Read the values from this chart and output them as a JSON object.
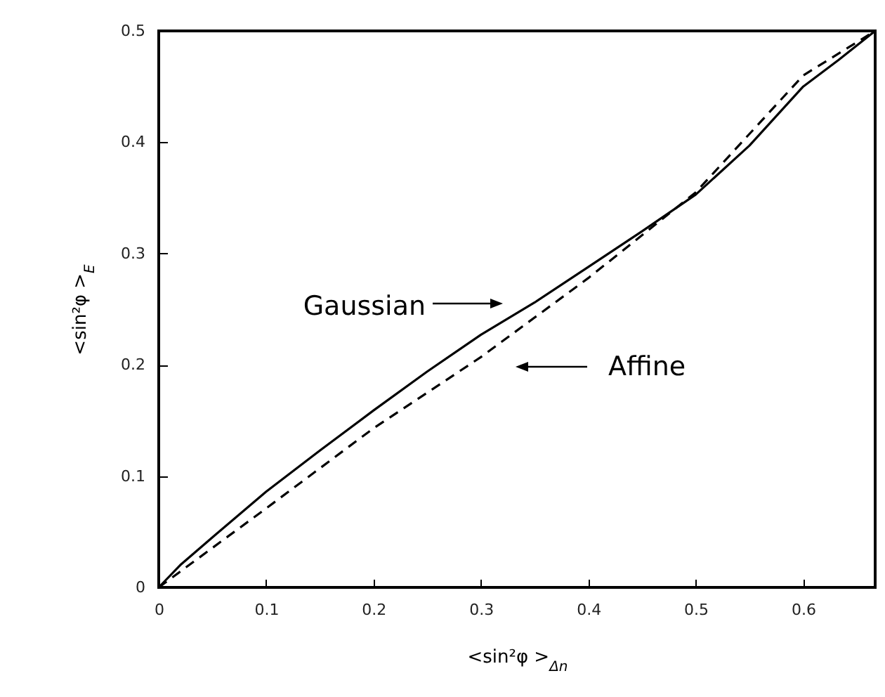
{
  "chart_data": {
    "type": "line",
    "xlabel": "<sin²φ >$_{Δn}$",
    "ylabel": "<sin²φ >$_{E}$",
    "xlim": [
      0,
      0.667
    ],
    "ylim": [
      0,
      0.5
    ],
    "xticks": [
      0,
      0.1,
      0.2,
      0.3,
      0.4,
      0.5,
      0.6
    ],
    "yticks": [
      0,
      0.1,
      0.2,
      0.3,
      0.4,
      0.5
    ],
    "marker": "none",
    "series": [
      {
        "color": "#000000",
        "line_style": "solid",
        "x": [
          0,
          0.02,
          0.05,
          0.1,
          0.15,
          0.2,
          0.25,
          0.3,
          0.35,
          0.4,
          0.45,
          0.5,
          0.55,
          0.6,
          0.633,
          0.667
        ],
        "values": [
          0,
          0.02,
          0.045,
          0.086,
          0.123,
          0.159,
          0.194,
          0.227,
          0.256,
          0.288,
          0.32,
          0.353,
          0.397,
          0.45,
          0.474,
          0.5
        ]
      },
      {
        "color": "#000000",
        "line_style": "dashed",
        "x": [
          0,
          0.1,
          0.2,
          0.3,
          0.4,
          0.5,
          0.6,
          0.667
        ],
        "values": [
          0,
          0.071,
          0.143,
          0.207,
          0.278,
          0.355,
          0.46,
          0.5
        ]
      }
    ],
    "annotations": [
      "Gaussian",
      "Affine"
    ]
  }
}
